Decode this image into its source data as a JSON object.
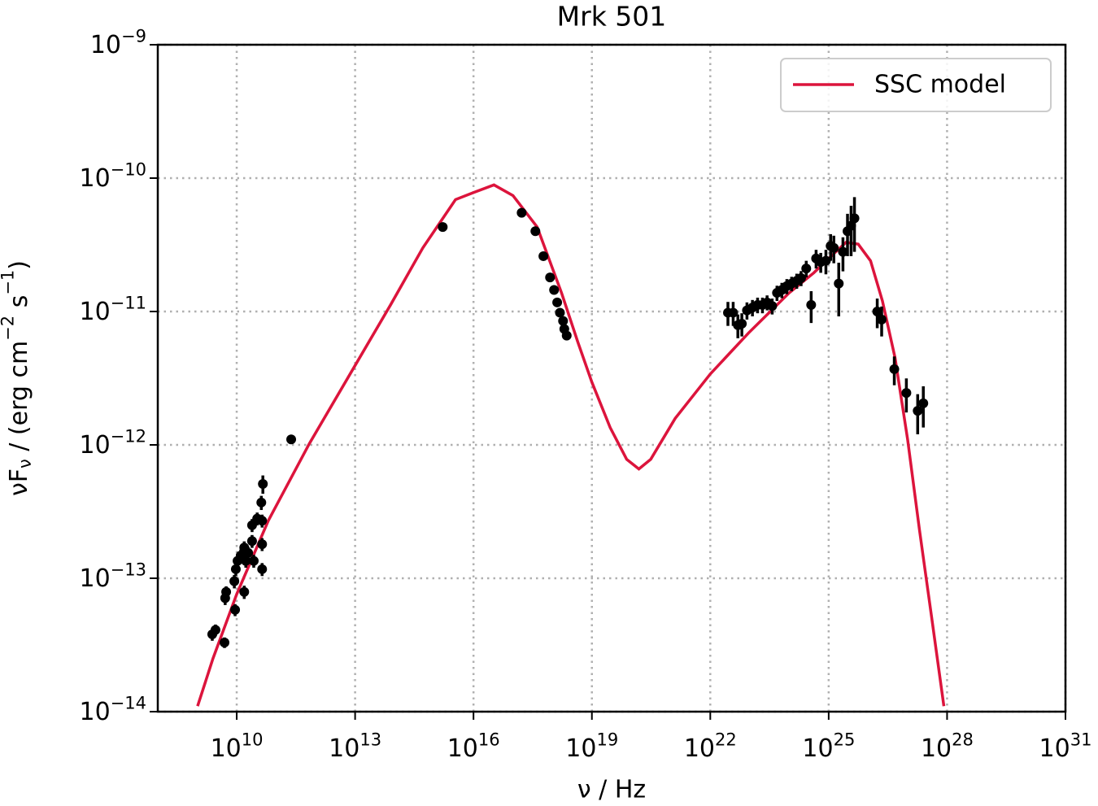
{
  "chart_data": {
    "type": "line",
    "title": "Mrk 501",
    "x_label": "ν / Hz",
    "y_label": "νF_{ν} / (erg cm^{−2} s^{−1})",
    "xscale": "log",
    "yscale": "log",
    "xlim": [
      100000000.0,
      1e+31
    ],
    "ylim": [
      1e-14,
      1e-09
    ],
    "xticks": [
      {
        "value": 10000000000.0,
        "label": "10^{10}"
      },
      {
        "value": 10000000000000.0,
        "label": "10^{13}"
      },
      {
        "value": 1e+16,
        "label": "10^{16}"
      },
      {
        "value": 1e+19,
        "label": "10^{19}"
      },
      {
        "value": 1e+22,
        "label": "10^{22}"
      },
      {
        "value": 1e+25,
        "label": "10^{25}"
      },
      {
        "value": 1e+28,
        "label": "10^{28}"
      },
      {
        "value": 1e+31,
        "label": "10^{31}"
      }
    ],
    "yticks": [
      {
        "value": 1e-14,
        "label": "10^{−14}"
      },
      {
        "value": 1e-13,
        "label": "10^{−13}"
      },
      {
        "value": 1e-12,
        "label": "10^{−12}"
      },
      {
        "value": 1e-11,
        "label": "10^{−11}"
      },
      {
        "value": 1e-10,
        "label": "10^{−10}"
      },
      {
        "value": 1e-09,
        "label": "10^{−9}"
      }
    ],
    "grid": true,
    "legend": "upper right",
    "series": [
      {
        "name": "SSC model",
        "type": "line",
        "color": "#dc143c",
        "x": [
          1020000000.0,
          2500000000.0,
          10000000000.0,
          63000000000.0,
          690000000000.0,
          9800000000000.0,
          79000000000000.0,
          520000000000000.0,
          3500000000000000.0,
          1e+16,
          3.3e+16,
          1e+17,
          4.1e+17,
          1.7e+18,
          4.4e+18,
          1e+19,
          2.9e+19,
          7.6e+19,
          1.55e+20,
          3.1e+20,
          1.29e+21,
          1e+22,
          9.3e+22,
          1e+24,
          4.2e+24,
          1e+25,
          2.75e+25,
          5.6e+25,
          1.15e+26,
          2.3e+26,
          4.8e+26,
          1e+27,
          2e+27,
          4.1e+27,
          8.3e+27
        ],
        "values": [
          1.1e-14,
          2.5e-14,
          7.6e-14,
          2.7e-13,
          1.02e-12,
          3.9e-12,
          1.12e-11,
          3e-11,
          6.9e-11,
          7.8e-11,
          8.9e-11,
          7.4e-11,
          4.3e-11,
          1.38e-11,
          5.9e-12,
          2.95e-12,
          1.35e-12,
          7.8e-13,
          6.6e-13,
          7.8e-13,
          1.58e-12,
          3.4e-12,
          6.9e-12,
          1.38e-11,
          1.95e-11,
          2.5e-11,
          3.3e-11,
          3.2e-11,
          2.4e-11,
          1.2e-11,
          4.5e-12,
          1.1e-12,
          2.3e-13,
          5e-14,
          1.1e-14
        ]
      },
      {
        "type": "errorbar",
        "color": "#000000",
        "x": [
          2400000000.0,
          2900000000.0,
          4900000000.0,
          5100000000.0,
          5400000000.0,
          9100000000.0,
          8700000000.0,
          9500000000.0,
          10500000000.0,
          12600000000.0,
          15500000000.0,
          15500000000.0,
          17000000000.0,
          19500000000.0,
          24500000000.0,
          24500000000.0,
          27000000000.0,
          44000000000.0,
          44000000000.0,
          44000000000.0,
          42000000000.0,
          46000000000.0,
          33000000000.0,
          240000000000.0,
          1660000000000000.0,
          1.66e+17,
          3.7e+17,
          5.9e+17,
          8.7e+17,
          1.1e+18,
          1.32e+18,
          1.55e+18,
          1.86e+18,
          2e+18,
          2.3e+18,
          2.8e+22,
          3.8e+22,
          5e+22,
          6.3e+22,
          8.5e+22,
          1.17e+23,
          1.58e+23,
          2.1e+23,
          2.75e+23,
          3.7e+23,
          4.9e+23,
          6.5e+23,
          8.7e+23,
          1.15e+24,
          1.55e+24,
          2e+24,
          2.7e+24,
          3.6e+24,
          4.8e+24,
          6.3e+24,
          8.5e+24,
          1.12e+25,
          1.35e+25,
          1.8e+25,
          2.3e+25,
          3e+25,
          3.7e+25,
          4.5e+25,
          1.7e+26,
          2.2e+26,
          4.6e+26,
          9.3e+26,
          1.8e+27,
          2.5e+27
        ],
        "values": [
          3.8e-14,
          4.1e-14,
          3.3e-14,
          7.1e-14,
          7.9e-14,
          5.8e-14,
          9.5e-14,
          1.17e-13,
          1.35e-13,
          1.48e-13,
          1.7e-13,
          7.9e-14,
          1.35e-13,
          1.55e-13,
          1.9e-13,
          2.5e-13,
          1.35e-13,
          1.17e-13,
          1.8e-13,
          2.7e-13,
          3.7e-13,
          5.1e-13,
          2.8e-13,
          1.1e-12,
          4.3e-11,
          5.5e-11,
          4e-11,
          2.6e-11,
          1.8e-11,
          1.45e-11,
          1.17e-11,
          9.8e-12,
          8.5e-12,
          7.4e-12,
          6.6e-12,
          9.8e-12,
          9.8e-12,
          7.9e-12,
          8.1e-12,
          1.02e-11,
          1.07e-11,
          1.12e-11,
          1.12e-11,
          1.17e-11,
          1.1e-11,
          1.38e-11,
          1.45e-11,
          1.55e-11,
          1.62e-11,
          1.7e-11,
          1.78e-11,
          2.1e-11,
          1.12e-11,
          2.5e-11,
          2.35e-11,
          2.4e-11,
          3.1e-11,
          3e-11,
          1.62e-11,
          2.8e-11,
          4e-11,
          4.4e-11,
          5e-11,
          1e-11,
          8.7e-12,
          3.7e-12,
          2.45e-12,
          1.8e-12,
          2.05e-12
        ],
        "errors": [
          4e-15,
          4e-15,
          3e-15,
          8e-15,
          8e-15,
          6e-15,
          1.1e-14,
          1.3e-14,
          1.5e-14,
          1.6e-14,
          1.9e-14,
          9e-15,
          1.5e-14,
          1.7e-14,
          2.1e-14,
          2.8e-14,
          1.5e-14,
          1.3e-14,
          2e-14,
          3e-14,
          4.5e-14,
          8e-14,
          3.1e-14,
          5e-14,
          2e-12,
          3e-12,
          2.5e-12,
          1.5e-12,
          1e-12,
          8e-13,
          7e-13,
          6e-13,
          5e-13,
          5e-13,
          4e-13,
          2e-12,
          2e-12,
          1.6e-12,
          1.6e-12,
          1.5e-12,
          1.5e-12,
          1.5e-12,
          1.5e-12,
          1.5e-12,
          1.5e-12,
          1.8e-12,
          1.9e-12,
          2e-12,
          2e-12,
          2.2e-12,
          2.3e-12,
          3e-12,
          3e-12,
          4e-12,
          4e-12,
          5e-12,
          7e-12,
          7e-12,
          7e-12,
          8e-12,
          1.4e-11,
          1.8e-11,
          2.2e-11,
          2.5e-12,
          2.2e-12,
          9e-13,
          7e-13,
          6e-13,
          7e-13
        ]
      }
    ]
  }
}
